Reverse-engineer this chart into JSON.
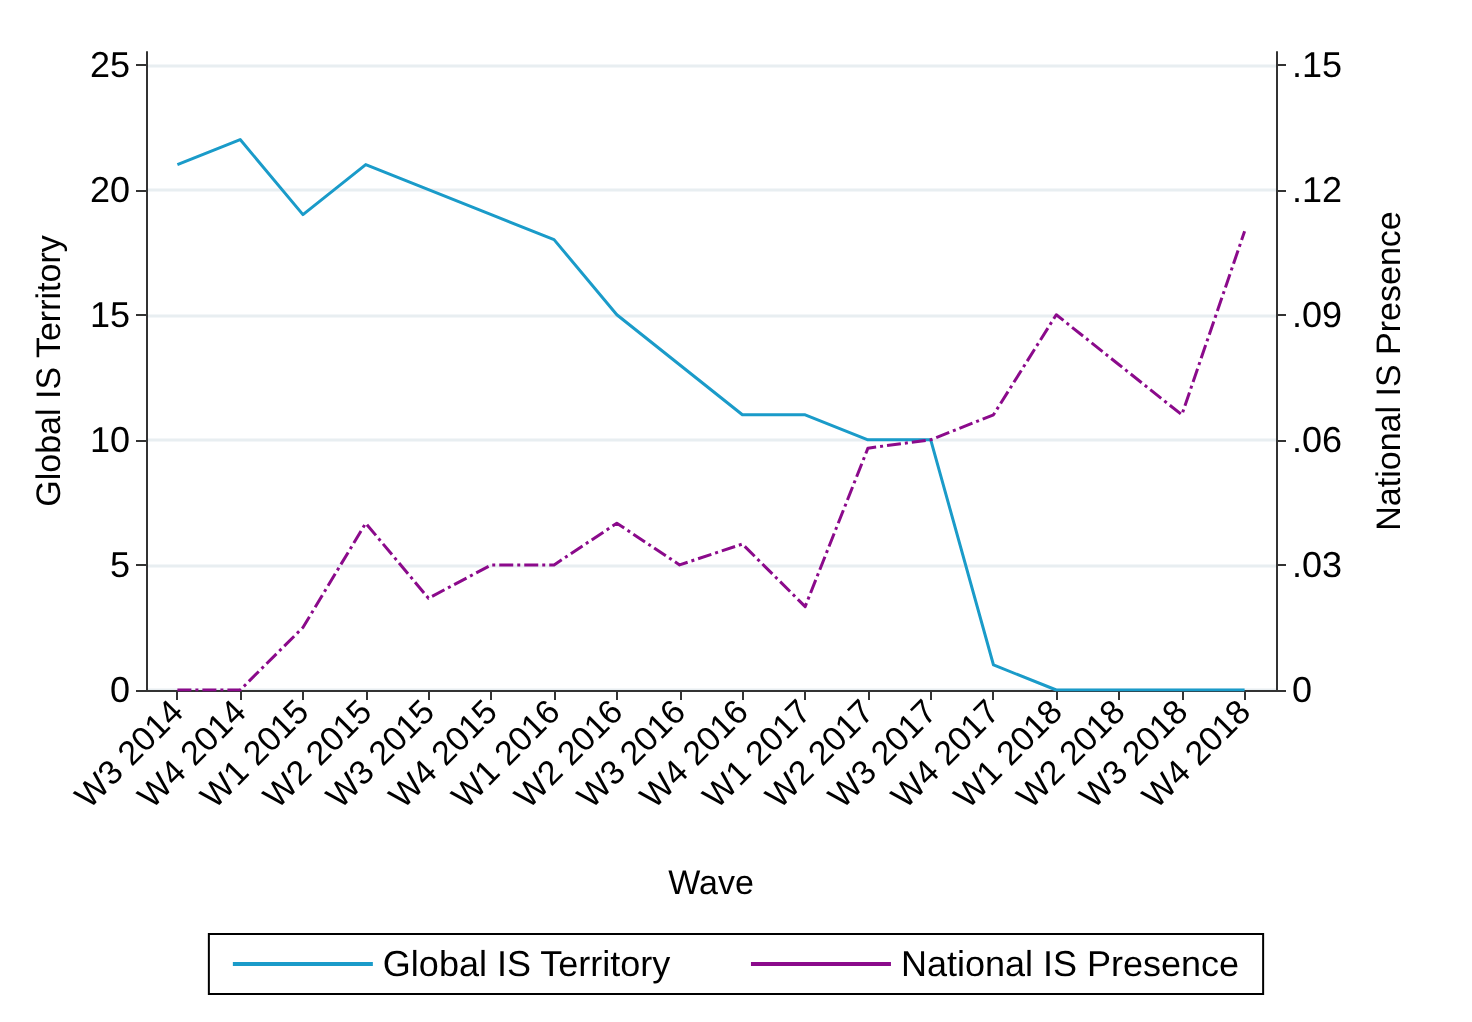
{
  "chart_data": {
    "type": "line",
    "xlabel": "Wave",
    "ylabel": "Global IS Territory",
    "y2label": "National IS Presence",
    "categories": [
      "W3 2014",
      "W4 2014",
      "W1 2015",
      "W2 2015",
      "W3 2015",
      "W4 2015",
      "W1 2016",
      "W2 2016",
      "W3 2016",
      "W4 2016",
      "W1 2017",
      "W2 2017",
      "W3 2017",
      "W4 2017",
      "W1 2018",
      "W2 2018",
      "W3 2018",
      "W4 2018"
    ],
    "series": [
      {
        "name": "Global IS Territory",
        "color": "#1a9bc9",
        "line_style": "solid",
        "values": [
          21,
          22,
          19,
          21,
          20,
          19,
          18,
          15,
          13,
          11,
          11,
          10,
          10,
          1,
          0,
          0,
          0,
          0
        ]
      },
      {
        "name": "National IS Presence",
        "color": "#8b0a8b",
        "line_style": "dashed",
        "axis": "y2",
        "values": [
          0,
          0,
          0.015,
          0.04,
          0.022,
          0.03,
          0.03,
          0.04,
          0.03,
          0.035,
          0.02,
          0.058,
          0.06,
          0.066,
          0.09,
          0.078,
          0.066,
          0.11
        ]
      }
    ],
    "ylim": [
      0,
      25.5
    ],
    "yticks": [
      0,
      5,
      10,
      15,
      20,
      25
    ],
    "y2lim": [
      0,
      0.153
    ],
    "y2ticks": [
      0,
      {
        "value": 0.03,
        "label": ".03"
      },
      {
        "value": 0.06,
        "label": ".06"
      },
      {
        "value": 0.09,
        "label": ".09"
      },
      {
        "value": 0.12,
        "label": ".12"
      },
      {
        "value": 0.15,
        "label": ".15"
      }
    ],
    "grid": "y",
    "legend": "bottom",
    "marker": "none"
  }
}
